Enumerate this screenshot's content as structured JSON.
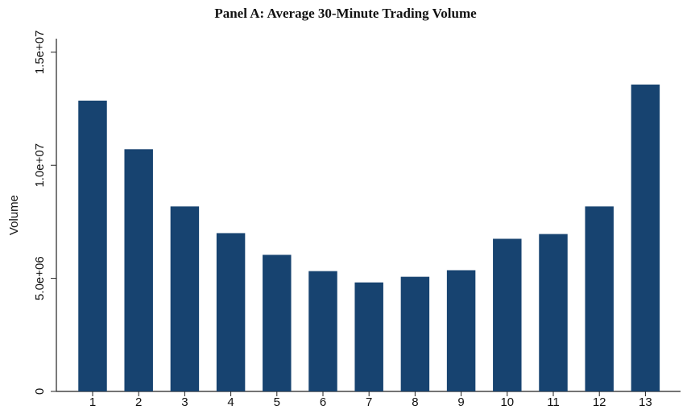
{
  "chart_data": {
    "type": "bar",
    "title": "Panel A: Average 30-Minute Trading Volume",
    "y_label": "Volume",
    "categories": [
      "1",
      "2",
      "3",
      "4",
      "5",
      "6",
      "7",
      "8",
      "9",
      "10",
      "11",
      "12",
      "13"
    ],
    "values": [
      12860000,
      10710000,
      8180000,
      7000000,
      6040000,
      5320000,
      4820000,
      5070000,
      5360000,
      6750000,
      6960000,
      8180000,
      13570000
    ],
    "color": "#174370",
    "ylim": [
      0,
      15600000
    ],
    "yticks": [
      0,
      {
        "value": 5000000,
        "label": "5.0e+06"
      },
      {
        "value": 10000000,
        "label": "1.0e+07"
      },
      {
        "value": 15000000,
        "label": "1.5e+07"
      }
    ],
    "grid": false
  }
}
